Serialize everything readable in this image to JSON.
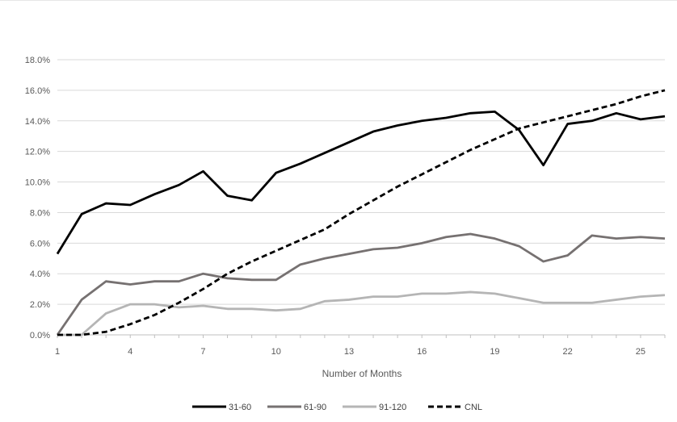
{
  "chart_data": {
    "type": "line",
    "title": "",
    "xlabel": "Number of Months",
    "ylabel": "",
    "x": [
      1,
      2,
      3,
      4,
      5,
      6,
      7,
      8,
      9,
      10,
      11,
      12,
      13,
      14,
      15,
      16,
      17,
      18,
      19,
      20,
      21,
      22,
      23,
      24,
      25,
      26
    ],
    "xticks": [
      1,
      4,
      7,
      10,
      13,
      16,
      19,
      22,
      25
    ],
    "xtick_labels": [
      "1",
      "4",
      "7",
      "10",
      "13",
      "16",
      "19",
      "22",
      "25"
    ],
    "xlim": [
      1,
      26
    ],
    "ylim": [
      0,
      18
    ],
    "yticks": [
      0,
      2,
      4,
      6,
      8,
      10,
      12,
      14,
      16,
      18
    ],
    "ytick_labels": [
      "0.0%",
      "2.0%",
      "4.0%",
      "6.0%",
      "8.0%",
      "10.0%",
      "12.0%",
      "14.0%",
      "16.0%",
      "18.0%"
    ],
    "grid": "horizontal",
    "legend_position": "bottom",
    "series": [
      {
        "name": "31-60",
        "color": "#000000",
        "style": "solid",
        "values": [
          5.3,
          7.9,
          8.6,
          8.5,
          9.2,
          9.8,
          10.7,
          9.1,
          8.8,
          10.6,
          11.2,
          11.9,
          12.6,
          13.3,
          13.7,
          14.0,
          14.2,
          14.5,
          14.6,
          13.4,
          11.1,
          13.8,
          14.0,
          14.5,
          14.1,
          14.3
        ]
      },
      {
        "name": "61-90",
        "color": "#767171",
        "style": "solid",
        "values": [
          0.0,
          2.3,
          3.5,
          3.3,
          3.5,
          3.5,
          4.0,
          3.7,
          3.6,
          3.6,
          4.6,
          5.0,
          5.3,
          5.6,
          5.7,
          6.0,
          6.4,
          6.6,
          6.3,
          5.8,
          4.8,
          5.2,
          6.5,
          6.3,
          6.4,
          6.3
        ]
      },
      {
        "name": "91-120",
        "color": "#b5b5b5",
        "style": "solid",
        "values": [
          0.0,
          0.0,
          1.4,
          2.0,
          2.0,
          1.8,
          1.9,
          1.7,
          1.7,
          1.6,
          1.7,
          2.2,
          2.3,
          2.5,
          2.5,
          2.7,
          2.7,
          2.8,
          2.7,
          2.4,
          2.1,
          2.1,
          2.1,
          2.3,
          2.5,
          2.6
        ]
      },
      {
        "name": "CNL",
        "color": "#000000",
        "style": "dashed",
        "values": [
          0.0,
          0.0,
          0.2,
          0.7,
          1.3,
          2.1,
          3.0,
          4.0,
          4.8,
          5.5,
          6.2,
          6.9,
          7.9,
          8.8,
          9.7,
          10.5,
          11.3,
          12.1,
          12.8,
          13.5,
          13.9,
          14.3,
          14.7,
          15.1,
          15.6,
          16.0
        ]
      }
    ]
  }
}
